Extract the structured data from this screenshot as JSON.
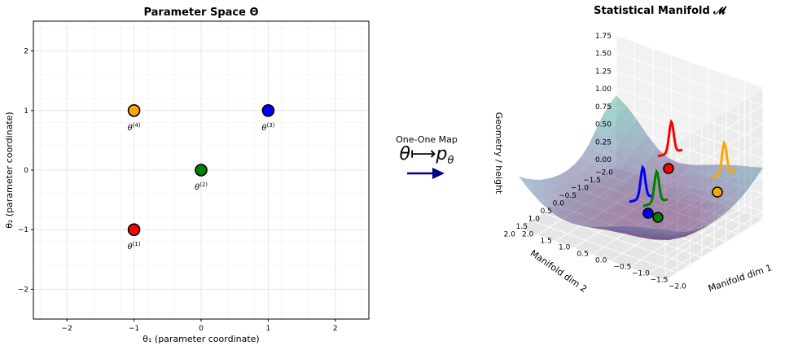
{
  "chart_data": [
    {
      "type": "scatter",
      "title": "Parameter Space Θ",
      "xlabel": "θ₁ (parameter coordinate)",
      "ylabel": "θ₂ (parameter coordinate)",
      "xlim": [
        -2.5,
        2.5
      ],
      "ylim": [
        -2.5,
        2.5
      ],
      "xticks": [
        -2,
        -1,
        0,
        1,
        2
      ],
      "yticks": [
        -2,
        -1,
        0,
        1,
        2
      ],
      "grid": true,
      "points": [
        {
          "label": "θ",
          "sup": "(1)",
          "x": -1,
          "y": -1,
          "color": "#ff0000"
        },
        {
          "label": "θ",
          "sup": "(2)",
          "x": 0,
          "y": 0,
          "color": "#008000"
        },
        {
          "label": "θ",
          "sup": "(3)",
          "x": 1,
          "y": 1,
          "color": "#0000ff"
        },
        {
          "label": "θ",
          "sup": "(4)",
          "x": -1,
          "y": 1,
          "color": "#ffa500"
        }
      ]
    },
    {
      "type": "surface3d",
      "title": "Statistical Manifold 𝓜",
      "xlabel": "Manifold dim 1",
      "ylabel": "Manifold dim 2",
      "zlabel": "Geometry / height",
      "xlim": [
        -2,
        2
      ],
      "ylim": [
        -2,
        2
      ],
      "zlim": [
        -0.1,
        1.75
      ],
      "xticks": [
        -2.0,
        -1.5,
        -1.0,
        -0.5,
        0.0,
        0.5,
        1.0,
        1.5,
        2.0
      ],
      "yticks": [
        -2.0,
        -1.5,
        -1.0,
        -0.5,
        0.0,
        0.5,
        1.0,
        1.5,
        2.0
      ],
      "zticks": [
        0.0,
        0.25,
        0.5,
        0.75,
        1.0,
        1.25,
        1.5,
        1.75
      ],
      "points": [
        {
          "x": -1,
          "y": -1,
          "z": 0.6,
          "color": "#ff0000"
        },
        {
          "x": 0,
          "y": 0,
          "z": 0.0,
          "color": "#008000"
        },
        {
          "x": 1,
          "y": 1,
          "z": 0.0,
          "color": "#0000ff"
        },
        {
          "x": -1,
          "y": 1,
          "z": 0.25,
          "color": "#ffa500"
        }
      ]
    }
  ],
  "map": {
    "text": "One-One Map",
    "theta": "θ",
    "arrow": "⟼",
    "p": "p",
    "p_sub": "θ",
    "arrow_color": "#00008b"
  }
}
